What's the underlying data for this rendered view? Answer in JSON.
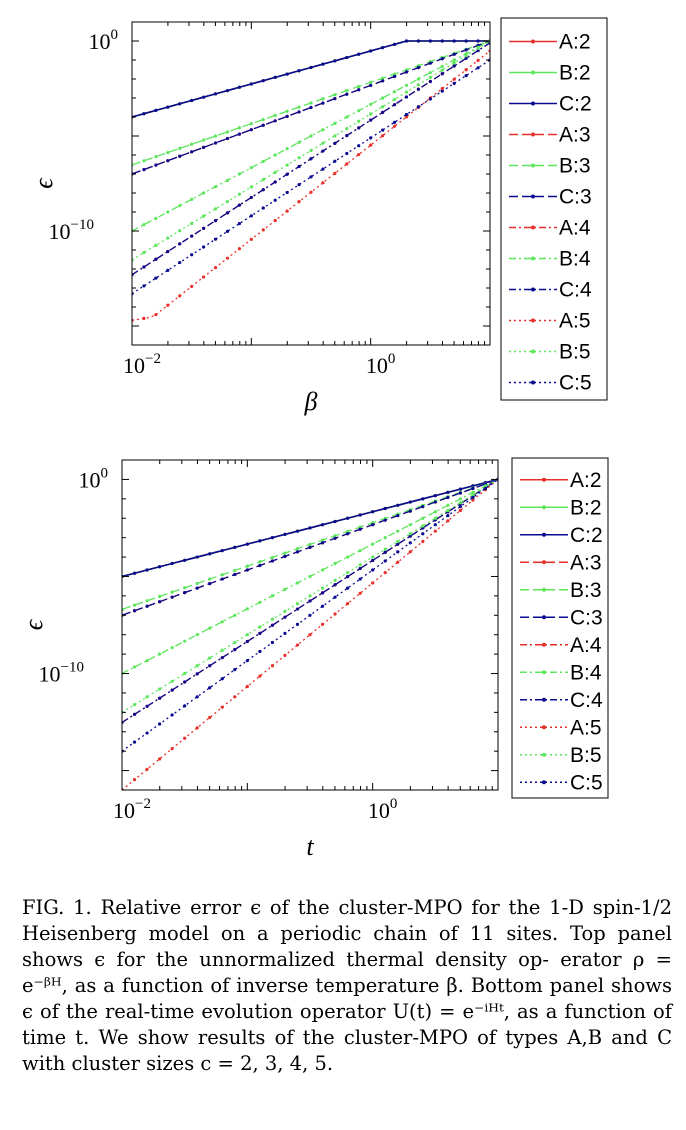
{
  "chart_data": [
    {
      "type": "line",
      "xlabel": "β",
      "ylabel": "ϵ",
      "xscale": "log",
      "yscale": "log",
      "xlim": [
        0.01,
        10
      ],
      "ylim": [
        1e-16,
        10.0
      ],
      "xticks": [
        "10^-2",
        "10^0"
      ],
      "yticks": [
        "10^0",
        "10^-10"
      ],
      "legend_position": "outside-right",
      "grid": false,
      "series": [
        {
          "name": "A:2",
          "color": "#e8302a",
          "dash": "solid",
          "values_at": {
            "0.01": 0.0001,
            "2": 1,
            "10": 1
          }
        },
        {
          "name": "B:2",
          "color": "#5ce65c",
          "dash": "solid",
          "values_at": {
            "0.01": 0.0001,
            "2": 1,
            "10": 1
          }
        },
        {
          "name": "C:2",
          "color": "#0a0a90",
          "dash": "solid",
          "values_at": {
            "0.01": 0.0001,
            "2": 1,
            "10": 1
          }
        },
        {
          "name": "A:3",
          "color": "#e8302a",
          "dash": "dashed",
          "values_at": {
            "0.01": 1e-07,
            "10": 1
          }
        },
        {
          "name": "B:3",
          "color": "#5ce65c",
          "dash": "dashed",
          "values_at": {
            "0.01": 3e-07,
            "10": 1
          }
        },
        {
          "name": "C:3",
          "color": "#0a0a90",
          "dash": "dashed",
          "values_at": {
            "0.01": 1e-07,
            "10": 1
          }
        },
        {
          "name": "A:4",
          "color": "#e8302a",
          "dash": "dashdot",
          "values_at": {
            "0.01": 5e-13,
            "10": 0.8
          }
        },
        {
          "name": "B:4",
          "color": "#5ce65c",
          "dash": "dashdot",
          "values_at": {
            "0.01": 1e-10,
            "10": 1
          }
        },
        {
          "name": "C:4",
          "color": "#0a0a90",
          "dash": "dashdot",
          "values_at": {
            "0.01": 5e-13,
            "10": 0.8
          }
        },
        {
          "name": "A:5",
          "color": "#e8302a",
          "dash": "dotted",
          "values_at": {
            "0.01": 2e-15,
            "0.015": 3e-15,
            "10": 0.3
          }
        },
        {
          "name": "B:5",
          "color": "#5ce65c",
          "dash": "dotted",
          "values_at": {
            "0.01": 3e-12,
            "10": 1
          }
        },
        {
          "name": "C:5",
          "color": "#0a0a90",
          "dash": "dotted",
          "values_at": {
            "0.01": 5e-14,
            "10": 0.1
          }
        }
      ]
    },
    {
      "type": "line",
      "xlabel": "t",
      "ylabel": "ϵ",
      "xscale": "log",
      "yscale": "log",
      "xlim": [
        0.01,
        10
      ],
      "ylim": [
        1e-16,
        10.0
      ],
      "xticks": [
        "10^-2",
        "10^0"
      ],
      "yticks": [
        "10^0",
        "10^-10"
      ],
      "legend_position": "outside-right",
      "grid": false,
      "series": [
        {
          "name": "A:2",
          "color": "#e8302a",
          "dash": "solid",
          "values_at": {
            "0.01": 1e-05,
            "10": 1
          }
        },
        {
          "name": "B:2",
          "color": "#5ce65c",
          "dash": "solid",
          "values_at": {
            "0.01": 1e-05,
            "10": 1
          }
        },
        {
          "name": "C:2",
          "color": "#0a0a90",
          "dash": "solid",
          "values_at": {
            "0.01": 1e-05,
            "10": 1
          }
        },
        {
          "name": "A:3",
          "color": "#e8302a",
          "dash": "dashed",
          "values_at": {
            "0.01": 1e-07,
            "10": 1
          }
        },
        {
          "name": "B:3",
          "color": "#5ce65c",
          "dash": "dashed",
          "values_at": {
            "0.01": 2e-07,
            "10": 1
          }
        },
        {
          "name": "C:3",
          "color": "#0a0a90",
          "dash": "dashed",
          "values_at": {
            "0.01": 1e-07,
            "10": 1
          }
        },
        {
          "name": "A:4",
          "color": "#e8302a",
          "dash": "dashdot",
          "values_at": {
            "0.01": 3e-13,
            "10": 1
          }
        },
        {
          "name": "B:4",
          "color": "#5ce65c",
          "dash": "dashdot",
          "values_at": {
            "0.01": 1e-10,
            "10": 1
          }
        },
        {
          "name": "C:4",
          "color": "#0a0a90",
          "dash": "dashdot",
          "values_at": {
            "0.01": 3e-13,
            "10": 1
          }
        },
        {
          "name": "A:5",
          "color": "#e8302a",
          "dash": "dotted",
          "values_at": {
            "0.01": 1e-16,
            "10": 1
          }
        },
        {
          "name": "B:5",
          "color": "#5ce65c",
          "dash": "dotted",
          "values_at": {
            "0.01": 1e-12,
            "10": 1
          }
        },
        {
          "name": "C:5",
          "color": "#0a0a90",
          "dash": "dotted",
          "values_at": {
            "0.01": 1e-14,
            "10": 1
          }
        }
      ]
    }
  ],
  "caption": {
    "fig_label": "FIG. 1.",
    "line1": "Relative error ϵ of the cluster-MPO for the 1-D",
    "line2": "spin-1/2 Heisenberg model on a periodic chain of 11 sites.",
    "line3": "Top panel shows ϵ for the unnormalized thermal density op-",
    "line4": "erator ρ = e⁻ᵝᴴ, as a function of inverse temperature β.",
    "line5": "Bottom panel shows ϵ of the real-time evolution operator",
    "line6": "U(t) = e⁻ⁱᴴᵗ, as a function of time t. We show results",
    "line7": "of the cluster-MPO of types A,B and C with cluster sizes",
    "line8": "c = 2, 3, 4, 5."
  }
}
